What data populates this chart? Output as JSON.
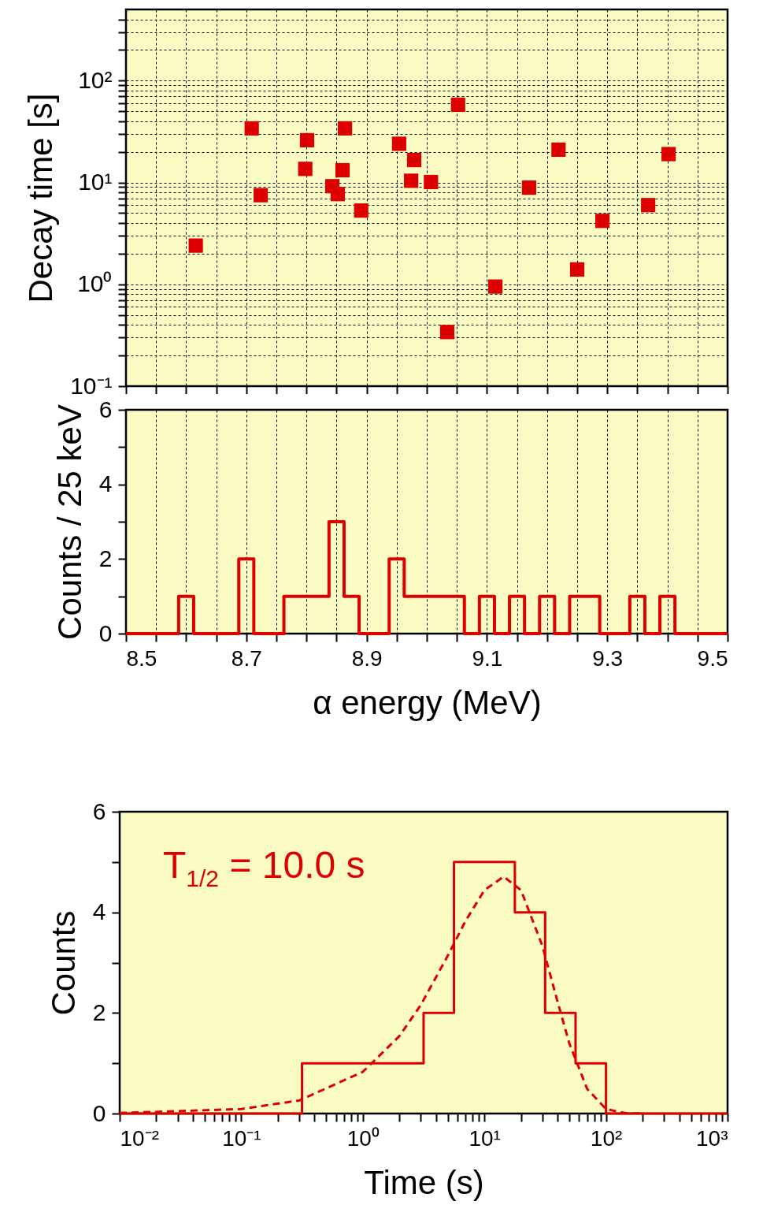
{
  "chart_data": [
    {
      "type": "scatter",
      "ylabel": "Decay time [s]",
      "log": "y",
      "marker": "square",
      "grid": true,
      "tick_labels": "y",
      "x": [
        8.616,
        8.709,
        8.724,
        8.798,
        8.801,
        8.843,
        8.852,
        8.86,
        8.864,
        8.891,
        8.954,
        8.974,
        8.979,
        9.007,
        9.034,
        9.052,
        9.114,
        9.17,
        9.219,
        9.25,
        9.292,
        9.368,
        9.402
      ],
      "series": [
        {
          "color": "#dd0000",
          "values": [
            2.4,
            34,
            7.5,
            13.6,
            26,
            9.2,
            7.7,
            13.2,
            34,
            5.3,
            24,
            10.4,
            16.6,
            10.1,
            0.34,
            58,
            0.95,
            8.9,
            21,
            1.4,
            4.2,
            6.0,
            19
          ]
        }
      ],
      "xlim": [
        8.5,
        9.5
      ],
      "xticks": [
        8.5,
        8.55,
        8.6,
        8.65,
        8.7,
        8.75,
        8.8,
        8.85,
        8.9,
        8.95,
        9.0,
        9.05,
        9.1,
        9.15,
        9.2,
        9.25,
        9.3,
        9.35,
        9.4,
        9.45,
        9.5
      ],
      "ylim": [
        0.1,
        500
      ],
      "yticks": [
        {
          "value": 0.1,
          "label": "10⁻¹"
        },
        {
          "value": 0.2,
          "label": null
        },
        {
          "value": 0.3,
          "label": null
        },
        {
          "value": 0.4,
          "label": null
        },
        {
          "value": 0.5,
          "label": null
        },
        {
          "value": 0.6,
          "label": null
        },
        {
          "value": 0.7,
          "label": null
        },
        {
          "value": 0.8,
          "label": null
        },
        {
          "value": 0.9,
          "label": null
        },
        {
          "value": 1,
          "label": "10⁰"
        },
        {
          "value": 2,
          "label": null
        },
        {
          "value": 3,
          "label": null
        },
        {
          "value": 4,
          "label": null
        },
        {
          "value": 5,
          "label": null
        },
        {
          "value": 6,
          "label": null
        },
        {
          "value": 7,
          "label": null
        },
        {
          "value": 8,
          "label": null
        },
        {
          "value": 9,
          "label": null
        },
        {
          "value": 10,
          "label": "10¹"
        },
        {
          "value": 20,
          "label": null
        },
        {
          "value": 30,
          "label": null
        },
        {
          "value": 40,
          "label": null
        },
        {
          "value": 50,
          "label": null
        },
        {
          "value": 60,
          "label": null
        },
        {
          "value": 70,
          "label": null
        },
        {
          "value": 80,
          "label": null
        },
        {
          "value": 90,
          "label": null
        },
        {
          "value": 100,
          "label": "10²"
        },
        {
          "value": 200,
          "label": null
        },
        {
          "value": 300,
          "label": null
        },
        {
          "value": 400,
          "label": null
        }
      ]
    },
    {
      "type": "histogram",
      "ylabel": "Counts / 25 keV",
      "xlabel": "α energy (MeV)",
      "grid": "x",
      "color": "#dd0000",
      "bins": [
        8.5,
        8.5125,
        8.5375,
        8.5625,
        8.5875,
        8.6125,
        8.6375,
        8.6625,
        8.6875,
        8.7125,
        8.7375,
        8.7625,
        8.7875,
        8.8125,
        8.8375,
        8.8625,
        8.8875,
        8.9125,
        8.9375,
        8.9625,
        8.9875,
        9.0125,
        9.0375,
        9.0625,
        9.0875,
        9.1125,
        9.1375,
        9.1625,
        9.1875,
        9.2125,
        9.2375,
        9.2625,
        9.2875,
        9.3125,
        9.3375,
        9.3625,
        9.3875,
        9.4125,
        9.4375,
        9.4625,
        9.4875,
        9.5
      ],
      "values": [
        0,
        0,
        0,
        0,
        1,
        0,
        0,
        0,
        2,
        0,
        0,
        1,
        1,
        1,
        3,
        1,
        0,
        0,
        2,
        1,
        1,
        1,
        1,
        0,
        1,
        0,
        1,
        0,
        1,
        0,
        1,
        1,
        0,
        0,
        1,
        0,
        1,
        0,
        0,
        0,
        0
      ],
      "xlim": [
        8.5,
        9.5
      ],
      "xticks": [
        8.5,
        {
          "value": 8.55,
          "label": null
        },
        {
          "value": 8.6,
          "label": null
        },
        {
          "value": 8.65,
          "label": null
        },
        8.7,
        {
          "value": 8.75,
          "label": null
        },
        {
          "value": 8.8,
          "label": null
        },
        {
          "value": 8.85,
          "label": null
        },
        8.9,
        {
          "value": 8.95,
          "label": null
        },
        {
          "value": 9.0,
          "label": null
        },
        {
          "value": 9.05,
          "label": null
        },
        9.1,
        {
          "value": 9.15,
          "label": null
        },
        {
          "value": 9.2,
          "label": null
        },
        {
          "value": 9.25,
          "label": null
        },
        9.3,
        {
          "value": 9.35,
          "label": null
        },
        {
          "value": 9.4,
          "label": null
        },
        {
          "value": 9.45,
          "label": null
        },
        9.5
      ],
      "ylim": [
        0,
        6
      ],
      "yticks": [
        0,
        {
          "value": 1,
          "label": null
        },
        2,
        {
          "value": 3,
          "label": null
        },
        4,
        {
          "value": 5,
          "label": null
        },
        6
      ]
    },
    {
      "type": "histogram",
      "xlabel": "Time (s)",
      "ylabel": "Counts",
      "log": "x",
      "annotations": [
        "T$_{1/2}$ = 10.0 s"
      ],
      "series": [
        {
          "type": "histogram",
          "color": "#dd0000",
          "bins": [
            0.01,
            0.0178,
            0.0316,
            0.0562,
            0.1,
            0.178,
            0.316,
            0.562,
            1,
            1.78,
            3.16,
            5.62,
            10,
            17.8,
            31.6,
            56.2,
            100,
            178,
            316,
            562,
            1000
          ],
          "values": [
            0,
            0,
            0,
            0,
            0,
            0,
            1,
            1,
            1,
            1,
            2,
            5,
            5,
            4,
            2,
            1,
            0,
            0,
            0,
            0
          ]
        },
        {
          "type": "line",
          "color": "#dd0000",
          "line_style": "dashed",
          "x": [
            0.01,
            0.1,
            0.3,
            1,
            2,
            3,
            5,
            7,
            10,
            14.4,
            20,
            30,
            40,
            50,
            70,
            100,
            150,
            200
          ],
          "values": [
            0.01,
            0.09,
            0.26,
            0.83,
            1.54,
            2.16,
            3.14,
            3.83,
            4.44,
            4.71,
            4.44,
            3.33,
            2.22,
            1.39,
            0.49,
            0.09,
            0.0,
            0.0
          ]
        }
      ],
      "xlim": [
        0.01,
        1000
      ],
      "xticks": [
        {
          "value": 0.01,
          "label": "10⁻²"
        },
        {
          "value": 0.02,
          "label": null
        },
        {
          "value": 0.03,
          "label": null
        },
        {
          "value": 0.04,
          "label": null
        },
        {
          "value": 0.05,
          "label": null
        },
        {
          "value": 0.06,
          "label": null
        },
        {
          "value": 0.07,
          "label": null
        },
        {
          "value": 0.08,
          "label": null
        },
        {
          "value": 0.09,
          "label": null
        },
        {
          "value": 0.1,
          "label": "10⁻¹"
        },
        {
          "value": 0.2,
          "label": null
        },
        {
          "value": 0.3,
          "label": null
        },
        {
          "value": 0.4,
          "label": null
        },
        {
          "value": 0.5,
          "label": null
        },
        {
          "value": 0.6,
          "label": null
        },
        {
          "value": 0.7,
          "label": null
        },
        {
          "value": 0.8,
          "label": null
        },
        {
          "value": 0.9,
          "label": null
        },
        {
          "value": 1,
          "label": "10⁰"
        },
        {
          "value": 2,
          "label": null
        },
        {
          "value": 3,
          "label": null
        },
        {
          "value": 4,
          "label": null
        },
        {
          "value": 5,
          "label": null
        },
        {
          "value": 6,
          "label": null
        },
        {
          "value": 7,
          "label": null
        },
        {
          "value": 8,
          "label": null
        },
        {
          "value": 9,
          "label": null
        },
        {
          "value": 10,
          "label": "10¹"
        },
        {
          "value": 20,
          "label": null
        },
        {
          "value": 30,
          "label": null
        },
        {
          "value": 40,
          "label": null
        },
        {
          "value": 50,
          "label": null
        },
        {
          "value": 60,
          "label": null
        },
        {
          "value": 70,
          "label": null
        },
        {
          "value": 80,
          "label": null
        },
        {
          "value": 90,
          "label": null
        },
        {
          "value": 100,
          "label": "10²"
        },
        {
          "value": 200,
          "label": null
        },
        {
          "value": 300,
          "label": null
        },
        {
          "value": 400,
          "label": null
        },
        {
          "value": 500,
          "label": null
        },
        {
          "value": 600,
          "label": null
        },
        {
          "value": 700,
          "label": null
        },
        {
          "value": 800,
          "label": null
        },
        {
          "value": 900,
          "label": null
        },
        {
          "value": 1000,
          "label": "10³"
        }
      ],
      "ylim": [
        0,
        6
      ],
      "yticks": [
        0,
        {
          "value": 1,
          "label": null
        },
        2,
        {
          "value": 3,
          "label": null
        },
        4,
        {
          "value": 5,
          "label": null
        },
        6
      ]
    }
  ]
}
